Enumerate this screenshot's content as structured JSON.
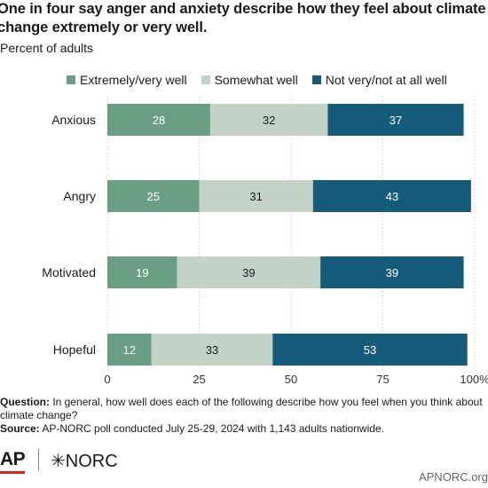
{
  "title": "One in four say anger and anxiety describe how they feel about climate change extremely or very well.",
  "subtitle": "Percent of adults",
  "legend": [
    {
      "label": "Extremely/very well",
      "color": "#6a9f86"
    },
    {
      "label": "Somewhat well",
      "color": "#c3d3c8"
    },
    {
      "label": "Not very/not at all well",
      "color": "#165b79"
    }
  ],
  "chart_data": {
    "type": "bar",
    "orientation": "horizontal",
    "stacked": true,
    "categories": [
      "Anxious",
      "Angry",
      "Motivated",
      "Hopeful"
    ],
    "series": [
      {
        "name": "Extremely/very well",
        "values": [
          28,
          25,
          19,
          12
        ],
        "color": "#6a9f86",
        "label_color": "#ffffff"
      },
      {
        "name": "Somewhat well",
        "values": [
          32,
          31,
          39,
          33
        ],
        "color": "#c3d3c8",
        "label_color": "#1a1a1a"
      },
      {
        "name": "Not very/not at all well",
        "values": [
          37,
          43,
          39,
          53
        ],
        "color": "#165b79",
        "label_color": "#ffffff"
      }
    ],
    "xlim": [
      0,
      100
    ],
    "x_ticks": [
      "0",
      "25",
      "50",
      "75",
      "100%"
    ],
    "grid": true,
    "legend_position": "top"
  },
  "notes": {
    "question_label": "Question:",
    "question_text": "In general, how well does each of the following describe how you feel when you think about climate change?",
    "source_label": "Source:",
    "source_text": "AP-NORC poll conducted July 25-29, 2024 with 1,143 adults nationwide."
  },
  "footer": {
    "ap": "AP",
    "norc": "✳NORC",
    "url": "APNORC.org"
  }
}
